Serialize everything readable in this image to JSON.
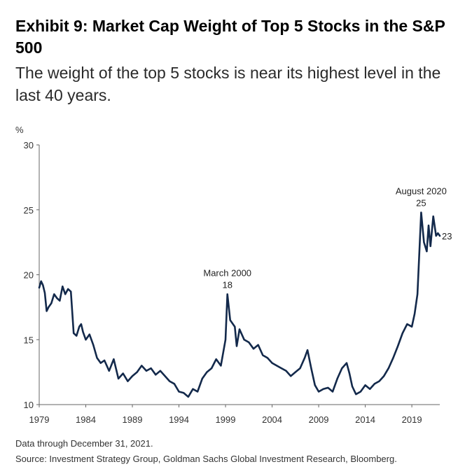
{
  "header": {
    "title": "Exhibit 9: Market Cap Weight of Top 5 Stocks in the S&P 500",
    "subtitle": "The weight of the top 5 stocks is near its highest level in the last 40 years."
  },
  "footer": {
    "note": "Data through December 31, 2021.",
    "source": "Source: Investment Strategy Group, Goldman Sachs Global Investment Research, Bloomberg."
  },
  "colors": {
    "line": "#13294b",
    "axis": "#666666"
  },
  "chart_data": {
    "type": "line",
    "title": "Exhibit 9: Market Cap Weight of Top 5 Stocks in the S&P 500",
    "ylabel": "%",
    "xlabel": "",
    "ylim": [
      10,
      30
    ],
    "xlim": [
      1979,
      2022
    ],
    "yticks": [
      10,
      15,
      20,
      25,
      30
    ],
    "xticks": [
      1979,
      1984,
      1989,
      1994,
      1999,
      2004,
      2009,
      2014,
      2019
    ],
    "grid": false,
    "series": [
      {
        "name": "",
        "x": [
          1979.0,
          1979.2,
          1979.4,
          1979.6,
          1979.8,
          1980.0,
          1980.3,
          1980.6,
          1980.9,
          1981.2,
          1981.5,
          1981.8,
          1982.1,
          1982.4,
          1982.7,
          1983.0,
          1983.3,
          1983.5,
          1983.7,
          1984.0,
          1984.4,
          1984.8,
          1985.2,
          1985.6,
          1986.0,
          1986.5,
          1987.0,
          1987.5,
          1988.0,
          1988.5,
          1989.0,
          1989.5,
          1990.0,
          1990.5,
          1991.0,
          1991.5,
          1992.0,
          1992.5,
          1993.0,
          1993.5,
          1994.0,
          1994.5,
          1995.0,
          1995.5,
          1996.0,
          1996.5,
          1997.0,
          1997.5,
          1998.0,
          1998.5,
          1999.0,
          1999.2,
          1999.5,
          2000.0,
          2000.2,
          2000.5,
          2001.0,
          2001.5,
          2002.0,
          2002.5,
          2003.0,
          2003.5,
          2004.0,
          2004.5,
          2005.0,
          2005.5,
          2006.0,
          2006.5,
          2007.0,
          2007.5,
          2007.8,
          2008.2,
          2008.6,
          2009.0,
          2009.5,
          2010.0,
          2010.5,
          2011.0,
          2011.5,
          2012.0,
          2012.3,
          2012.6,
          2013.0,
          2013.5,
          2014.0,
          2014.5,
          2015.0,
          2015.5,
          2016.0,
          2016.5,
          2017.0,
          2017.5,
          2018.0,
          2018.5,
          2019.0,
          2019.3,
          2019.6,
          2020.0,
          2020.3,
          2020.6,
          2020.8,
          2021.0,
          2021.3,
          2021.6,
          2021.8,
          2022.0
        ],
        "values": [
          19.0,
          19.5,
          19.2,
          18.6,
          17.2,
          17.5,
          17.8,
          18.5,
          18.2,
          18.0,
          19.1,
          18.5,
          18.9,
          18.7,
          15.5,
          15.3,
          16.0,
          16.2,
          15.6,
          15.0,
          15.4,
          14.6,
          13.6,
          13.2,
          13.4,
          12.6,
          13.5,
          12.0,
          12.4,
          11.8,
          12.2,
          12.5,
          13.0,
          12.6,
          12.8,
          12.3,
          12.6,
          12.2,
          11.8,
          11.6,
          11.0,
          10.9,
          10.6,
          11.2,
          11.0,
          12.0,
          12.5,
          12.8,
          13.5,
          13.0,
          15.0,
          18.5,
          16.5,
          16.0,
          14.5,
          15.8,
          15.0,
          14.8,
          14.3,
          14.6,
          13.8,
          13.6,
          13.2,
          13.0,
          12.8,
          12.6,
          12.2,
          12.5,
          12.8,
          13.6,
          14.2,
          12.8,
          11.5,
          11.0,
          11.2,
          11.3,
          11.0,
          12.0,
          12.8,
          13.2,
          12.4,
          11.4,
          10.8,
          11.0,
          11.5,
          11.2,
          11.6,
          11.8,
          12.2,
          12.8,
          13.6,
          14.5,
          15.5,
          16.2,
          16.0,
          17.0,
          18.5,
          24.8,
          22.5,
          21.8,
          23.8,
          22.2,
          24.5,
          23.0,
          23.2,
          23.0
        ]
      }
    ],
    "annotations": [
      {
        "label": "March 2000",
        "value_label": "18",
        "x": 1999.2,
        "y": 18.5
      },
      {
        "label": "August 2020",
        "value_label": "25",
        "x": 2020.0,
        "y": 24.8
      },
      {
        "label": "",
        "value_label": "23",
        "x": 2022.0,
        "y": 23.0
      }
    ]
  }
}
